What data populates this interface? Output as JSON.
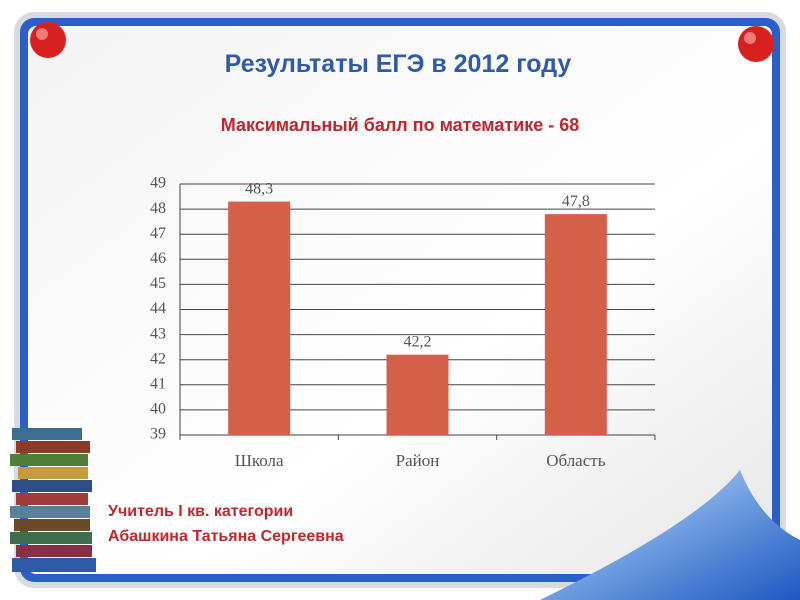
{
  "chart_data": {
    "type": "bar",
    "title": "Результаты ЕГЭ в 2012 году",
    "subtitle": "Максимальный балл по математике - 68",
    "categories": [
      "Школа",
      "Район",
      "Область"
    ],
    "values": [
      48.3,
      42.2,
      47.8
    ],
    "value_labels": [
      "48,3",
      "42,2",
      "47,8"
    ],
    "color": "#d4604a",
    "ylim": [
      39,
      49
    ],
    "yticks": [
      39,
      40,
      41,
      42,
      43,
      44,
      45,
      46,
      47,
      48,
      49
    ],
    "grid": true,
    "annotations": [
      "Учитель I кв. категории",
      "Абашкина Татьяна Сергеевна"
    ]
  }
}
